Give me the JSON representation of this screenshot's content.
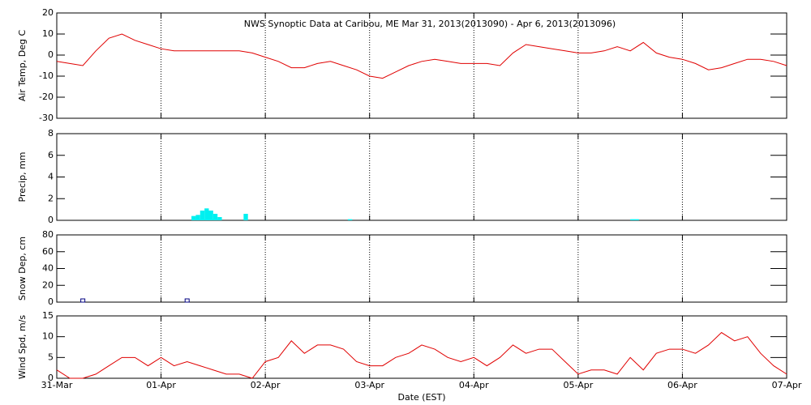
{
  "chart_data": [
    {
      "type": "line",
      "title": "NWS Synoptic Data at Caribou, ME   Mar 31, 2013(2013090) - Apr  6, 2013(2013096)",
      "y_label": "Air Temp, Deg C",
      "color": "#e00000",
      "x": [
        0,
        3,
        6,
        9,
        12,
        15,
        18,
        21,
        24,
        27,
        30,
        33,
        36,
        39,
        42,
        45,
        48,
        51,
        54,
        57,
        60,
        63,
        66,
        69,
        72,
        75,
        78,
        81,
        84,
        87,
        90,
        93,
        96,
        99,
        102,
        105,
        108,
        111,
        114,
        117,
        120,
        123,
        126,
        129,
        132,
        135,
        138,
        141,
        144,
        147,
        150,
        153,
        156,
        159,
        162,
        165,
        168
      ],
      "values": [
        -3,
        -4,
        -5,
        2,
        8,
        10,
        7,
        5,
        3,
        2,
        2,
        2,
        2,
        2,
        2,
        1,
        -1,
        -3,
        -6,
        -6,
        -4,
        -3,
        -5,
        -7,
        -10,
        -11,
        -8,
        -5,
        -3,
        -2,
        -3,
        -4,
        -4,
        -4,
        -5,
        1,
        5,
        4,
        3,
        2,
        1,
        1,
        2,
        4,
        2,
        6,
        1,
        -1,
        -2,
        -4,
        -7,
        -6,
        -4,
        -2,
        -2,
        -3,
        -5
      ],
      "xlim": [
        0,
        168
      ],
      "xticks": [
        0,
        24,
        48,
        72,
        96,
        120,
        144,
        168
      ],
      "ylim": [
        -30,
        20
      ],
      "yticks": [
        -30,
        -20,
        -10,
        0,
        10,
        20
      ],
      "grid": true
    },
    {
      "type": "bar",
      "y_label": "Precip, mm",
      "color": "#00f0f0",
      "x": [
        31,
        32,
        33,
        34,
        35,
        36,
        37,
        43,
        67,
        132,
        133
      ],
      "values": [
        0.4,
        0.5,
        0.9,
        1.1,
        0.9,
        0.6,
        0.3,
        0.6,
        0.1,
        0.1,
        0.1
      ],
      "xlim": [
        0,
        168
      ],
      "xticks": [
        0,
        24,
        48,
        72,
        96,
        120,
        144,
        168
      ],
      "ylim": [
        0,
        8
      ],
      "yticks": [
        0,
        2,
        4,
        6,
        8
      ],
      "grid": true
    },
    {
      "type": "scatter",
      "y_label": "Snow Dep, cm",
      "color": "#000080",
      "x": [
        6,
        30
      ],
      "values": [
        0,
        0
      ],
      "xlim": [
        0,
        168
      ],
      "xticks": [
        0,
        24,
        48,
        72,
        96,
        120,
        144,
        168
      ],
      "ylim": [
        0,
        80
      ],
      "yticks": [
        0,
        20,
        40,
        60,
        80
      ],
      "grid": true
    },
    {
      "type": "line",
      "y_label": "Wind Spd, m/s",
      "x_label": "Date (EST)",
      "color": "#e00000",
      "x": [
        0,
        3,
        6,
        9,
        12,
        15,
        18,
        21,
        24,
        27,
        30,
        33,
        36,
        39,
        42,
        45,
        48,
        51,
        54,
        57,
        60,
        63,
        66,
        69,
        72,
        75,
        78,
        81,
        84,
        87,
        90,
        93,
        96,
        99,
        102,
        105,
        108,
        111,
        114,
        117,
        120,
        123,
        126,
        129,
        132,
        135,
        138,
        141,
        144,
        147,
        150,
        153,
        156,
        159,
        162,
        165,
        168
      ],
      "values": [
        2,
        0,
        0,
        1,
        3,
        5,
        5,
        3,
        5,
        3,
        4,
        3,
        2,
        1,
        1,
        0,
        4,
        5,
        9,
        6,
        8,
        8,
        7,
        4,
        3,
        3,
        5,
        6,
        8,
        7,
        5,
        4,
        5,
        3,
        5,
        8,
        6,
        7,
        7,
        4,
        1,
        2,
        2,
        1,
        5,
        2,
        6,
        7,
        7,
        6,
        8,
        11,
        9,
        10,
        6,
        3,
        1
      ],
      "xlim": [
        0,
        168
      ],
      "xticks": [
        {
          "value": 0,
          "label": "31-Mar"
        },
        {
          "value": 24,
          "label": "01-Apr"
        },
        {
          "value": 48,
          "label": "02-Apr"
        },
        {
          "value": 72,
          "label": "03-Apr"
        },
        {
          "value": 96,
          "label": "04-Apr"
        },
        {
          "value": 120,
          "label": "05-Apr"
        },
        {
          "value": 144,
          "label": "06-Apr"
        },
        {
          "value": 168,
          "label": "07-Apr"
        }
      ],
      "ylim": [
        0,
        15
      ],
      "yticks": [
        0,
        5,
        10,
        15
      ],
      "grid": true
    }
  ]
}
